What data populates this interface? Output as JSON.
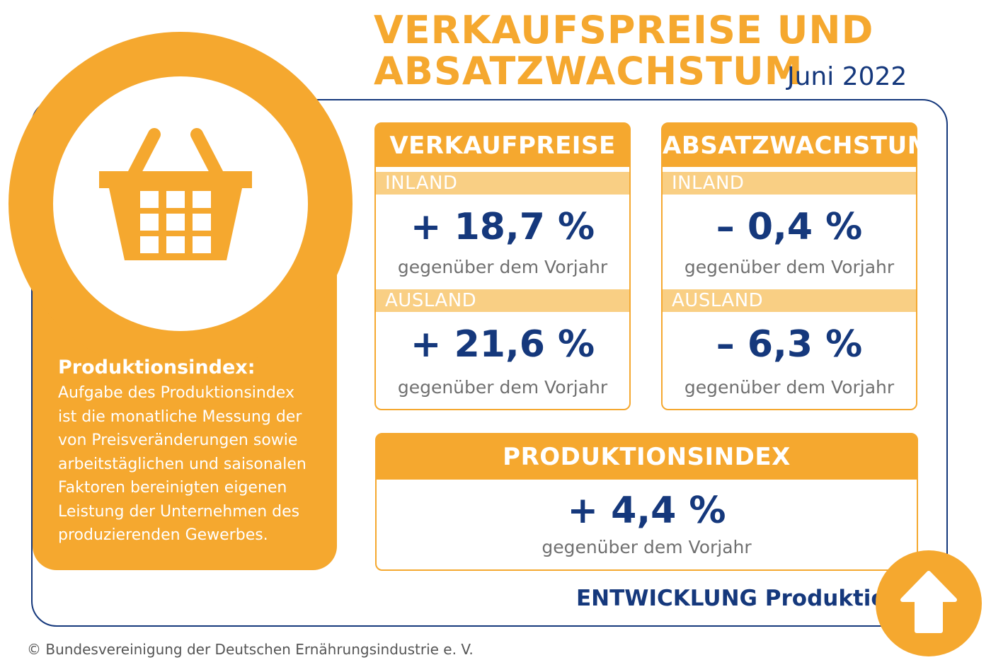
{
  "title": {
    "line1": "VERKAUFSPREISE UND",
    "line2": "ABSATZWACHSTUM",
    "date": "Juni 2022"
  },
  "info": {
    "heading": "Produktionsindex:",
    "lines": [
      "Aufgabe des Produktionsindex",
      "ist die monatliche Messung der",
      "von Preisveränderungen sowie",
      "arbeitstäglichen und saisonalen",
      "Faktoren bereinigten eigenen",
      "Leistung der Unternehmen des",
      "produzierenden Gewerbes."
    ],
    "icon": "shopping-basket-icon"
  },
  "verkaufpreise": {
    "title": "VERKAUFPREISE",
    "inland_label": "INLAND",
    "inland_value": "+ 18,7 %",
    "inland_note": "gegenüber dem Vorjahr",
    "ausland_label": "AUSLAND",
    "ausland_value": "+ 21,6 %",
    "ausland_note": "gegenüber dem Vorjahr"
  },
  "absatzwachstum": {
    "title": "ABSATZWACHSTUM",
    "inland_label": "INLAND",
    "inland_value": "– 0,4 %",
    "inland_note": "gegenüber dem Vorjahr",
    "ausland_label": "AUSLAND",
    "ausland_value": "– 6,3 %",
    "ausland_note": "gegenüber dem Vorjahr"
  },
  "produktionsindex": {
    "title": "PRODUKTIONSINDEX",
    "value": "+ 4,4 %",
    "note": "gegenüber dem Vorjahr"
  },
  "entwicklung": {
    "label_bold": "ENTWICKLUNG",
    "label_rest": "Produktion:",
    "direction": "up",
    "icon": "arrow-up-icon"
  },
  "colors": {
    "accent": "#f5a82f",
    "accent_light": "#f9cf84",
    "navy": "#15387c",
    "gray_text": "#707070"
  },
  "footer": {
    "copyright": "© Bundesvereinigung der Deutschen Ernährungsindustrie e. V."
  }
}
